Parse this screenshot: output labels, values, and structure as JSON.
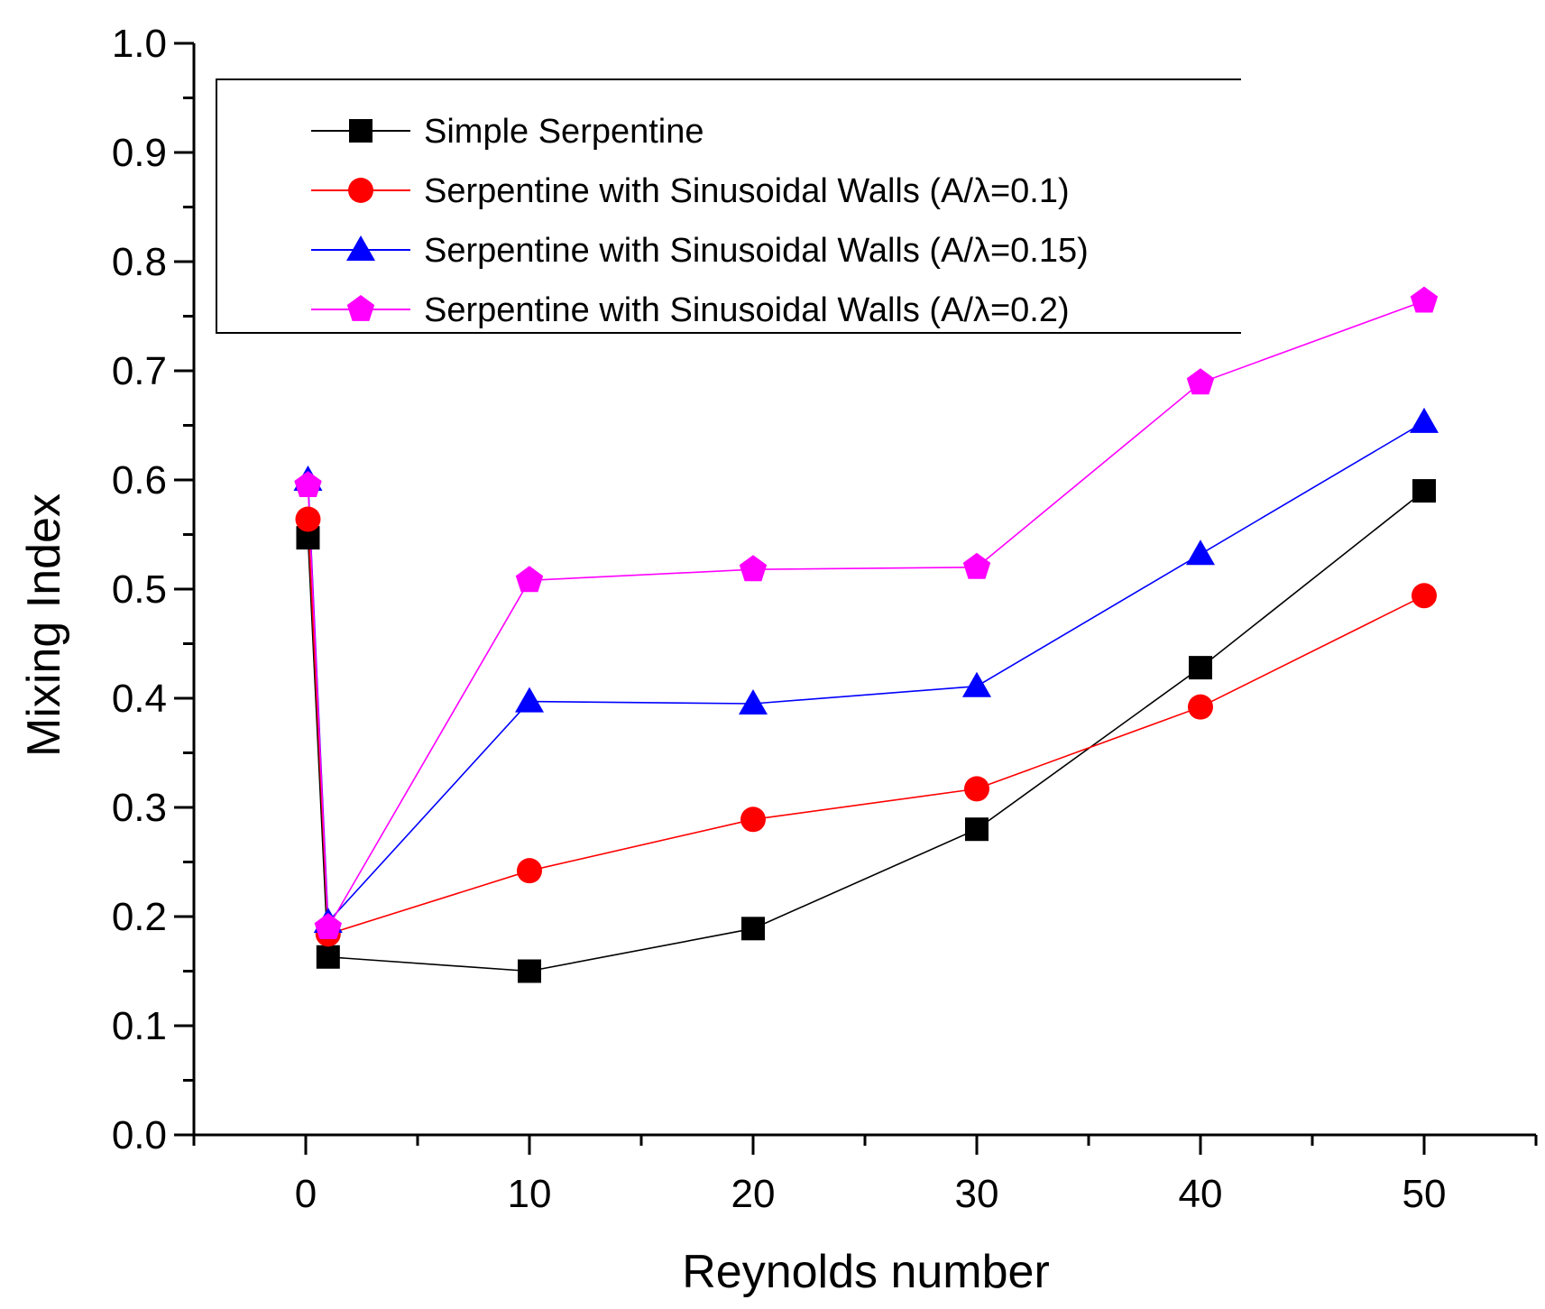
{
  "chart_data": {
    "type": "line",
    "xlabel": "Reynolds number",
    "ylabel": "Mixing Index",
    "xlim": [
      -5,
      55
    ],
    "ylim": [
      0,
      1.0
    ],
    "x_ticks": [
      "0",
      "10",
      "20",
      "30",
      "40",
      "50"
    ],
    "y_ticks": [
      "0.0",
      "0.1",
      "0.2",
      "0.3",
      "0.4",
      "0.5",
      "0.6",
      "0.7",
      "0.8",
      "0.9",
      "1.0"
    ],
    "legend_position": "top",
    "series": [
      {
        "name": "Simple Serpentine",
        "color": "#000000",
        "marker": "square",
        "x": [
          0.1,
          1,
          10,
          20,
          30,
          40,
          50
        ],
        "y": [
          0.547,
          0.163,
          0.15,
          0.189,
          0.28,
          0.428,
          0.59
        ]
      },
      {
        "name": "Serpentine with Sinusoidal Walls (A/λ=0.1)",
        "color": "#ff0000",
        "marker": "circle",
        "x": [
          0.1,
          1,
          10,
          20,
          30,
          40,
          50
        ],
        "y": [
          0.564,
          0.184,
          0.242,
          0.289,
          0.317,
          0.392,
          0.494
        ]
      },
      {
        "name": "Serpentine with Sinusoidal Walls (A/λ=0.15)",
        "color": "#0000ff",
        "marker": "triangle",
        "x": [
          0.1,
          1,
          10,
          20,
          30,
          40,
          50
        ],
        "y": [
          0.6,
          0.195,
          0.397,
          0.395,
          0.411,
          0.532,
          0.653
        ]
      },
      {
        "name": "Serpentine with Sinusoidal Walls (A/λ=0.2)",
        "color": "#ff00ff",
        "marker": "pentagon",
        "x": [
          0.1,
          1,
          10,
          20,
          30,
          40,
          50
        ],
        "y": [
          0.595,
          0.19,
          0.508,
          0.518,
          0.52,
          0.689,
          0.764
        ]
      }
    ]
  }
}
